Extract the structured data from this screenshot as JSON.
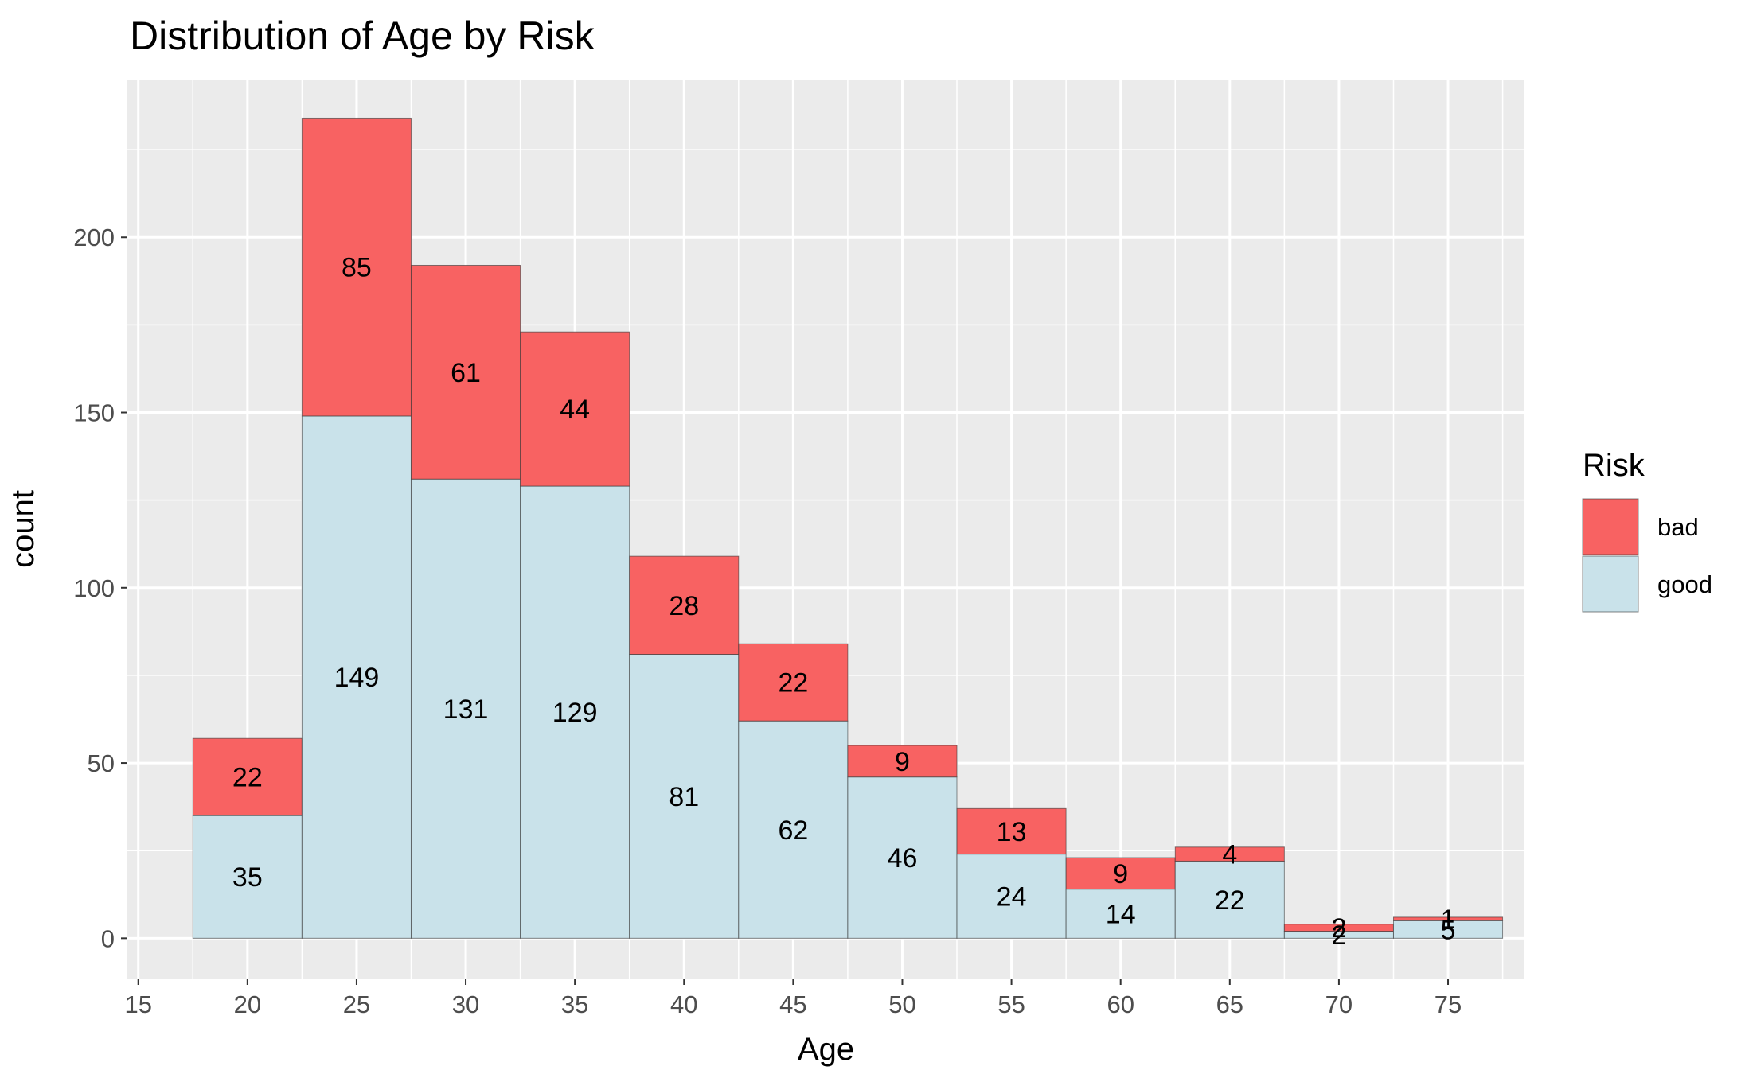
{
  "chart_data": {
    "type": "bar",
    "stacked": true,
    "title": "Distribution of Age by Risk",
    "xlabel": "Age",
    "ylabel": "count",
    "categories": [
      20,
      25,
      30,
      35,
      40,
      45,
      50,
      55,
      60,
      65,
      70,
      75
    ],
    "bin_width": 5,
    "xlim": [
      14.5,
      78.5
    ],
    "ylim": [
      -11.5,
      245
    ],
    "x_ticks": [
      15,
      20,
      25,
      30,
      35,
      40,
      45,
      50,
      55,
      60,
      65,
      70,
      75
    ],
    "y_ticks": [
      0,
      50,
      100,
      150,
      200
    ],
    "grid": true,
    "legend": {
      "title": "Risk",
      "position": "right"
    },
    "series": [
      {
        "name": "good",
        "color": "#c9e2ea",
        "values": [
          35,
          149,
          131,
          129,
          81,
          62,
          46,
          24,
          14,
          22,
          2,
          5
        ]
      },
      {
        "name": "bad",
        "color": "#f86262",
        "values": [
          22,
          85,
          61,
          44,
          28,
          22,
          9,
          13,
          9,
          4,
          2,
          1
        ]
      }
    ]
  }
}
